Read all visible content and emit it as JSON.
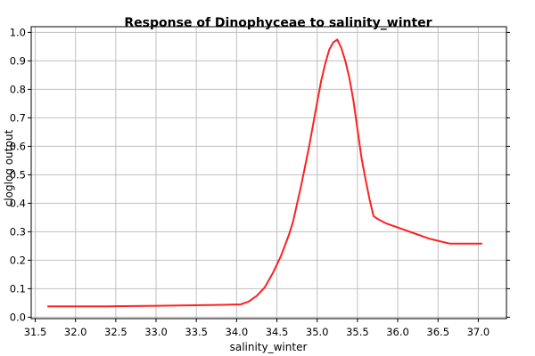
{
  "chart_data": {
    "type": "line",
    "title": "Response of Dinophyceae to salinity_winter",
    "xlabel": "salinity_winter",
    "ylabel": "cloglog output",
    "xlim": [
      31.45,
      37.35
    ],
    "ylim": [
      -0.005,
      1.02
    ],
    "x_ticks": [
      31.5,
      32.0,
      32.5,
      33.0,
      33.5,
      34.0,
      34.5,
      35.0,
      35.5,
      36.0,
      36.5,
      37.0
    ],
    "x_tick_labels": [
      "31.5",
      "32.0",
      "32.5",
      "33.0",
      "33.5",
      "34.0",
      "34.5",
      "35.0",
      "35.5",
      "36.0",
      "36.5",
      "37.0"
    ],
    "y_ticks": [
      0.0,
      0.1,
      0.2,
      0.3,
      0.4,
      0.5,
      0.6,
      0.7,
      0.8,
      0.9,
      1.0
    ],
    "y_tick_labels": [
      "0.0",
      "0.1",
      "0.2",
      "0.3",
      "0.4",
      "0.5",
      "0.6",
      "0.7",
      "0.8",
      "0.9",
      "1.0"
    ],
    "grid": true,
    "series": [
      {
        "color": "#ff2020",
        "x": [
          31.65,
          32.4,
          33.0,
          33.75,
          34.05,
          34.15,
          34.25,
          34.35,
          34.45,
          34.55,
          34.65,
          34.7,
          34.8,
          34.9,
          35.0,
          35.05,
          35.1,
          35.15,
          35.2,
          35.25,
          35.3,
          35.35,
          35.4,
          35.45,
          35.5,
          35.55,
          35.6,
          35.65,
          35.7,
          35.75,
          35.85,
          36.0,
          36.2,
          36.4,
          36.65,
          37.05
        ],
        "y": [
          0.038,
          0.038,
          0.04,
          0.043,
          0.045,
          0.055,
          0.075,
          0.105,
          0.155,
          0.215,
          0.29,
          0.335,
          0.46,
          0.6,
          0.755,
          0.83,
          0.89,
          0.94,
          0.965,
          0.975,
          0.945,
          0.9,
          0.84,
          0.76,
          0.66,
          0.56,
          0.485,
          0.415,
          0.355,
          0.345,
          0.33,
          0.315,
          0.295,
          0.275,
          0.258,
          0.258
        ]
      }
    ]
  }
}
